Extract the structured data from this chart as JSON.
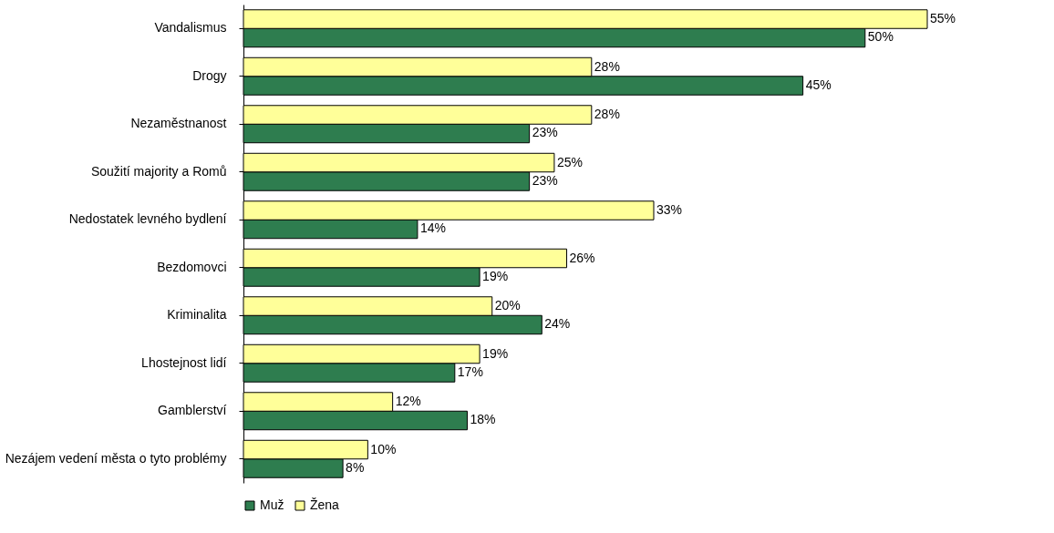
{
  "chart_data": {
    "type": "bar",
    "orientation": "horizontal",
    "categories": [
      "Vandalismus",
      "Drogy",
      "Nezaměstnanost",
      "Soužití majority a Romů",
      "Nedostatek levného bydlení",
      "Bezdomovci",
      "Kriminalita",
      "Lhostejnost lidí",
      "Gamblerství",
      "Nezájem vedení města o tyto problémy"
    ],
    "series": [
      {
        "name": "Muž",
        "color": "#2e7d4f",
        "values": [
          50,
          45,
          23,
          23,
          14,
          19,
          24,
          17,
          18,
          8
        ],
        "value_labels": [
          "50%",
          "45%",
          "23%",
          "23%",
          "14%",
          "19%",
          "24%",
          "17%",
          "18%",
          "8%"
        ]
      },
      {
        "name": "Žena",
        "color": "#ffff99",
        "values": [
          55,
          28,
          28,
          25,
          33,
          26,
          20,
          19,
          12,
          10
        ],
        "value_labels": [
          "55%",
          "28%",
          "28%",
          "25%",
          "33%",
          "26%",
          "20%",
          "19%",
          "12%",
          "10%"
        ]
      }
    ],
    "legend": "bottom",
    "tick_labels": "y"
  }
}
